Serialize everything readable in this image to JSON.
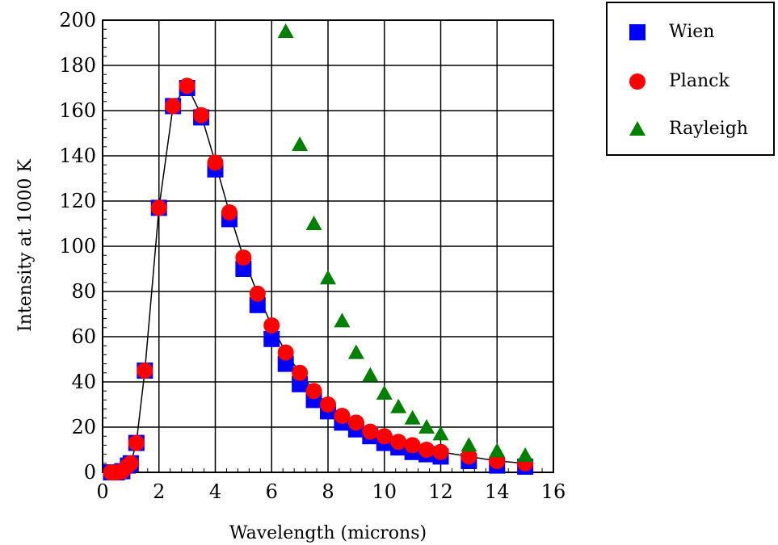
{
  "chart_data": {
    "type": "scatter",
    "xlabel": "Wavelength (microns)",
    "ylabel": "Intensity at 1000 K",
    "xlim": [
      0,
      16
    ],
    "ylim": [
      0,
      200
    ],
    "xticks": [
      0,
      2,
      4,
      6,
      8,
      10,
      12,
      14,
      16
    ],
    "yticks": [
      0,
      20,
      40,
      60,
      80,
      100,
      120,
      140,
      160,
      180,
      200
    ],
    "x_minor_step": 0.4,
    "y_minor_step": 4,
    "grid": true,
    "legend_position": "top-right",
    "series": [
      {
        "name": "Wien",
        "marker": "square",
        "color": "#0000ff",
        "points": [
          [
            0.3,
            0
          ],
          [
            0.5,
            0
          ],
          [
            0.7,
            0.5
          ],
          [
            0.9,
            3
          ],
          [
            1.0,
            4
          ],
          [
            1.2,
            13
          ],
          [
            1.5,
            45
          ],
          [
            2.0,
            117
          ],
          [
            2.5,
            162
          ],
          [
            3.0,
            170
          ],
          [
            3.5,
            157
          ],
          [
            4.0,
            134
          ],
          [
            4.5,
            112
          ],
          [
            5.0,
            90
          ],
          [
            5.5,
            74
          ],
          [
            6.0,
            59
          ],
          [
            6.5,
            48
          ],
          [
            7.0,
            39
          ],
          [
            7.5,
            32
          ],
          [
            8.0,
            27
          ],
          [
            8.5,
            22
          ],
          [
            9.0,
            19
          ],
          [
            9.5,
            16
          ],
          [
            10.0,
            13
          ],
          [
            10.5,
            11
          ],
          [
            11.0,
            9
          ],
          [
            11.5,
            8
          ],
          [
            12.0,
            7
          ],
          [
            13.0,
            5
          ],
          [
            14.0,
            3
          ],
          [
            15.0,
            2.5
          ]
        ]
      },
      {
        "name": "Planck",
        "marker": "circle",
        "color": "#ff0000",
        "points": [
          [
            0.3,
            0
          ],
          [
            0.5,
            0
          ],
          [
            0.7,
            0.5
          ],
          [
            0.9,
            3
          ],
          [
            1.0,
            4
          ],
          [
            1.2,
            13
          ],
          [
            1.5,
            45
          ],
          [
            2.0,
            117
          ],
          [
            2.5,
            162
          ],
          [
            3.0,
            171
          ],
          [
            3.5,
            158
          ],
          [
            4.0,
            137
          ],
          [
            4.5,
            115
          ],
          [
            5.0,
            95
          ],
          [
            5.5,
            79
          ],
          [
            6.0,
            65
          ],
          [
            6.5,
            53
          ],
          [
            7.0,
            44
          ],
          [
            7.5,
            36
          ],
          [
            8.0,
            30
          ],
          [
            8.5,
            25
          ],
          [
            9.0,
            22
          ],
          [
            9.5,
            18
          ],
          [
            10.0,
            16
          ],
          [
            10.5,
            13.5
          ],
          [
            11.0,
            12
          ],
          [
            11.5,
            10
          ],
          [
            12.0,
            9
          ],
          [
            13.0,
            7
          ],
          [
            14.0,
            5
          ],
          [
            15.0,
            4
          ]
        ]
      },
      {
        "name": "Rayleigh",
        "marker": "triangle",
        "color": "#008000",
        "points": [
          [
            6.5,
            195
          ],
          [
            7.0,
            145
          ],
          [
            7.5,
            110
          ],
          [
            8.0,
            86
          ],
          [
            8.5,
            67
          ],
          [
            9.0,
            53
          ],
          [
            9.5,
            43
          ],
          [
            10.0,
            35
          ],
          [
            10.5,
            29
          ],
          [
            11.0,
            24
          ],
          [
            11.5,
            20
          ],
          [
            12.0,
            17
          ],
          [
            13.0,
            12
          ],
          [
            14.0,
            9.5
          ],
          [
            15.0,
            7.5
          ]
        ]
      }
    ],
    "connected_series": "Planck",
    "line_color": "#000000"
  }
}
